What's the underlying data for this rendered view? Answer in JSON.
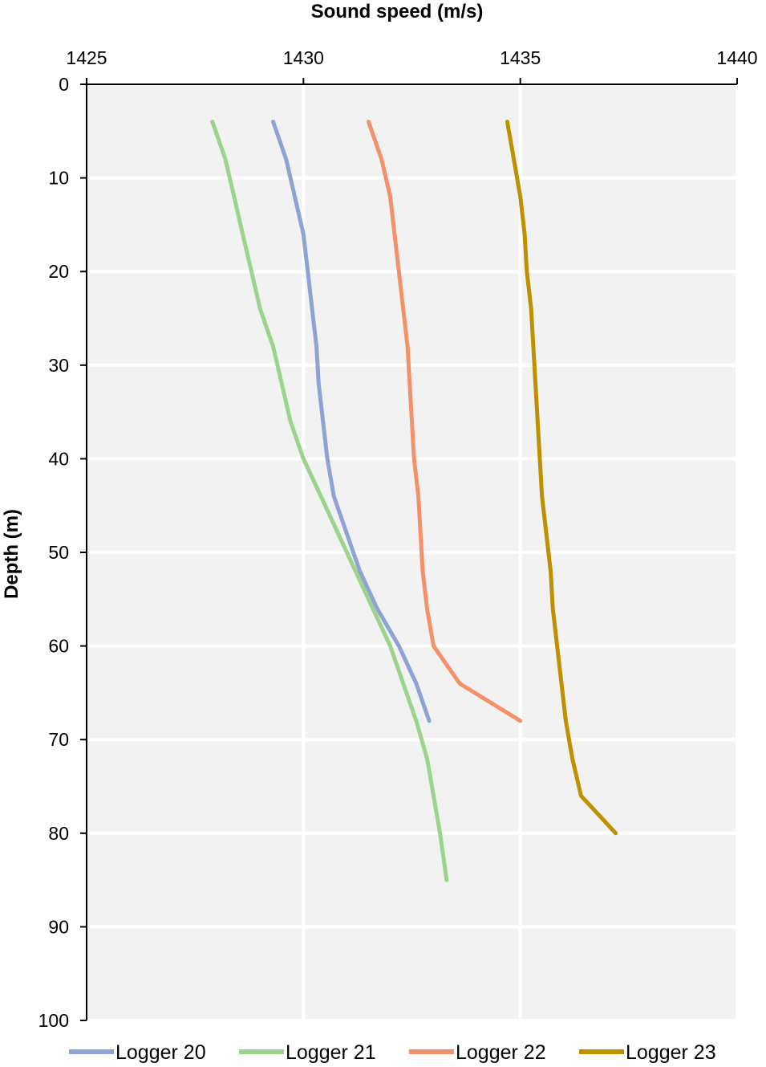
{
  "chart_data": {
    "type": "line",
    "xlabel": "Sound speed (m/s)",
    "ylabel": "Depth (m)",
    "x_axis_position": "top",
    "y_axis_inverted": true,
    "xlim": [
      1425,
      1440
    ],
    "ylim": [
      0,
      100
    ],
    "x_ticks": [
      1425,
      1430,
      1435,
      1440
    ],
    "y_ticks": [
      0,
      10,
      20,
      30,
      40,
      50,
      60,
      70,
      80,
      90,
      100
    ],
    "grid": true,
    "legend": "bottom",
    "plot_background": "#f2f2f2",
    "series": [
      {
        "name": "Logger 20",
        "color": "#8fa2d4",
        "points": [
          {
            "depth": 4,
            "speed": 1429.3
          },
          {
            "depth": 8,
            "speed": 1429.6
          },
          {
            "depth": 12,
            "speed": 1429.8
          },
          {
            "depth": 16,
            "speed": 1430.0
          },
          {
            "depth": 20,
            "speed": 1430.1
          },
          {
            "depth": 24,
            "speed": 1430.2
          },
          {
            "depth": 28,
            "speed": 1430.3
          },
          {
            "depth": 32,
            "speed": 1430.35
          },
          {
            "depth": 36,
            "speed": 1430.45
          },
          {
            "depth": 40,
            "speed": 1430.55
          },
          {
            "depth": 44,
            "speed": 1430.7
          },
          {
            "depth": 48,
            "speed": 1431.0
          },
          {
            "depth": 52,
            "speed": 1431.3
          },
          {
            "depth": 56,
            "speed": 1431.7
          },
          {
            "depth": 60,
            "speed": 1432.2
          },
          {
            "depth": 64,
            "speed": 1432.6
          },
          {
            "depth": 68,
            "speed": 1432.9
          }
        ]
      },
      {
        "name": "Logger 21",
        "color": "#9bd48d",
        "points": [
          {
            "depth": 4,
            "speed": 1427.9
          },
          {
            "depth": 8,
            "speed": 1428.2
          },
          {
            "depth": 12,
            "speed": 1428.4
          },
          {
            "depth": 16,
            "speed": 1428.6
          },
          {
            "depth": 20,
            "speed": 1428.8
          },
          {
            "depth": 24,
            "speed": 1429.0
          },
          {
            "depth": 28,
            "speed": 1429.3
          },
          {
            "depth": 32,
            "speed": 1429.5
          },
          {
            "depth": 36,
            "speed": 1429.7
          },
          {
            "depth": 40,
            "speed": 1430.0
          },
          {
            "depth": 44,
            "speed": 1430.4
          },
          {
            "depth": 48,
            "speed": 1430.8
          },
          {
            "depth": 52,
            "speed": 1431.2
          },
          {
            "depth": 56,
            "speed": 1431.6
          },
          {
            "depth": 60,
            "speed": 1432.0
          },
          {
            "depth": 64,
            "speed": 1432.3
          },
          {
            "depth": 68,
            "speed": 1432.6
          },
          {
            "depth": 72,
            "speed": 1432.85
          },
          {
            "depth": 76,
            "speed": 1433.0
          },
          {
            "depth": 80,
            "speed": 1433.15
          },
          {
            "depth": 85,
            "speed": 1433.3
          }
        ]
      },
      {
        "name": "Logger 22",
        "color": "#f4916b",
        "points": [
          {
            "depth": 4,
            "speed": 1431.5
          },
          {
            "depth": 8,
            "speed": 1431.8
          },
          {
            "depth": 12,
            "speed": 1432.0
          },
          {
            "depth": 16,
            "speed": 1432.1
          },
          {
            "depth": 20,
            "speed": 1432.2
          },
          {
            "depth": 24,
            "speed": 1432.3
          },
          {
            "depth": 28,
            "speed": 1432.4
          },
          {
            "depth": 32,
            "speed": 1432.45
          },
          {
            "depth": 36,
            "speed": 1432.5
          },
          {
            "depth": 40,
            "speed": 1432.55
          },
          {
            "depth": 44,
            "speed": 1432.65
          },
          {
            "depth": 48,
            "speed": 1432.7
          },
          {
            "depth": 52,
            "speed": 1432.75
          },
          {
            "depth": 56,
            "speed": 1432.85
          },
          {
            "depth": 60,
            "speed": 1433.0
          },
          {
            "depth": 64,
            "speed": 1433.6
          },
          {
            "depth": 68,
            "speed": 1435.0
          }
        ]
      },
      {
        "name": "Logger 23",
        "color": "#bf9000",
        "points": [
          {
            "depth": 4,
            "speed": 1434.7
          },
          {
            "depth": 8,
            "speed": 1434.85
          },
          {
            "depth": 12,
            "speed": 1435.0
          },
          {
            "depth": 16,
            "speed": 1435.1
          },
          {
            "depth": 20,
            "speed": 1435.15
          },
          {
            "depth": 24,
            "speed": 1435.25
          },
          {
            "depth": 28,
            "speed": 1435.3
          },
          {
            "depth": 32,
            "speed": 1435.35
          },
          {
            "depth": 36,
            "speed": 1435.4
          },
          {
            "depth": 40,
            "speed": 1435.45
          },
          {
            "depth": 44,
            "speed": 1435.5
          },
          {
            "depth": 48,
            "speed": 1435.6
          },
          {
            "depth": 52,
            "speed": 1435.7
          },
          {
            "depth": 56,
            "speed": 1435.75
          },
          {
            "depth": 60,
            "speed": 1435.85
          },
          {
            "depth": 64,
            "speed": 1435.95
          },
          {
            "depth": 68,
            "speed": 1436.05
          },
          {
            "depth": 72,
            "speed": 1436.2
          },
          {
            "depth": 76,
            "speed": 1436.4
          },
          {
            "depth": 80,
            "speed": 1437.2
          }
        ]
      }
    ]
  }
}
